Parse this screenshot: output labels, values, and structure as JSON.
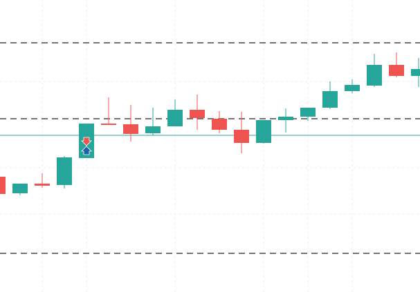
{
  "chart_data": {
    "type": "candlestick",
    "categories": [
      null,
      null,
      null,
      null,
      null,
      null,
      null,
      null,
      null,
      null,
      null,
      null,
      null,
      null,
      null,
      null,
      null,
      null,
      null,
      null
    ],
    "open": [
      167,
      143,
      157,
      155,
      194,
      244,
      243,
      230,
      240,
      264,
      251,
      235,
      216,
      249,
      254,
      267,
      291,
      299,
      329,
      313
    ],
    "high": [
      167,
      157,
      172,
      197,
      244,
      282,
      271,
      267,
      279,
      286,
      262,
      261,
      249,
      266,
      267,
      305,
      308,
      345,
      347,
      339
    ],
    "low": [
      142,
      140,
      151,
      150,
      194,
      242,
      218,
      227,
      240,
      235,
      230,
      201,
      215,
      231,
      248,
      265,
      288,
      297,
      311,
      297
    ],
    "close": [
      142,
      157,
      154,
      195,
      244,
      242,
      229,
      240,
      264,
      252,
      235,
      216,
      249,
      254,
      267,
      291,
      300,
      329,
      313,
      323
    ],
    "up_color": "#26a69a",
    "down_color": "#ef5350",
    "levels": [
      361,
      251,
      56
    ],
    "price_line": 227,
    "ylim": [
      0,
      423
    ]
  }
}
